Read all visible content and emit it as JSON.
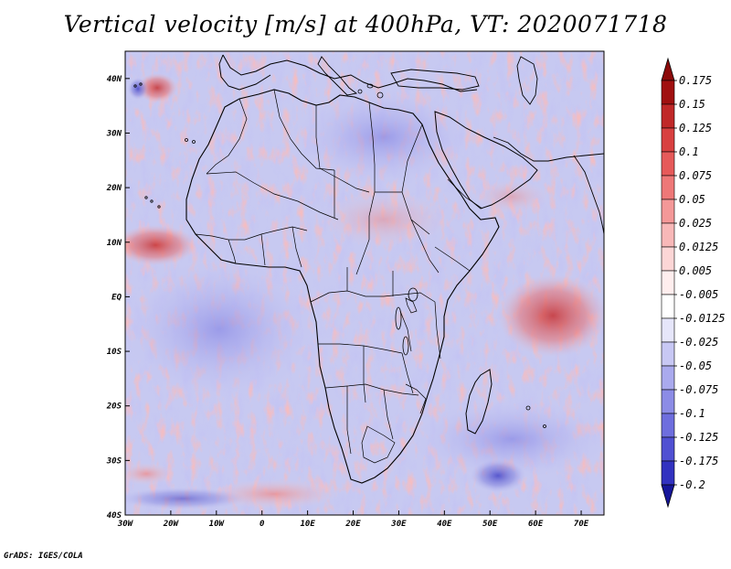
{
  "title": "Vertical velocity [m/s] at 400hPa, VT: 2020071718",
  "footer": "GrADS: IGES/COLA",
  "map": {
    "longitude_range": [
      -30,
      75
    ],
    "latitude_range": [
      -40,
      45
    ],
    "lon_ticks": [
      {
        "lon": -30,
        "label": "30W"
      },
      {
        "lon": -20,
        "label": "20W"
      },
      {
        "lon": -10,
        "label": "10W"
      },
      {
        "lon": 0,
        "label": "0"
      },
      {
        "lon": 10,
        "label": "10E"
      },
      {
        "lon": 20,
        "label": "20E"
      },
      {
        "lon": 30,
        "label": "30E"
      },
      {
        "lon": 40,
        "label": "40E"
      },
      {
        "lon": 50,
        "label": "50E"
      },
      {
        "lon": 60,
        "label": "60E"
      },
      {
        "lon": 70,
        "label": "70E"
      }
    ],
    "lat_ticks": [
      {
        "lat": 40,
        "label": "40N"
      },
      {
        "lat": 30,
        "label": "30N"
      },
      {
        "lat": 20,
        "label": "20N"
      },
      {
        "lat": 10,
        "label": "10N"
      },
      {
        "lat": 0,
        "label": "EQ"
      },
      {
        "lat": -10,
        "label": "10S"
      },
      {
        "lat": -20,
        "label": "20S"
      },
      {
        "lat": -30,
        "label": "30S"
      },
      {
        "lat": -40,
        "label": "40S"
      }
    ]
  },
  "colorbar": {
    "units": "m/s",
    "levels": [
      {
        "label": "0.175",
        "color": "#a01010"
      },
      {
        "label": "0.15",
        "color": "#c02828"
      },
      {
        "label": "0.125",
        "color": "#d84040"
      },
      {
        "label": "0.1",
        "color": "#e65a5a"
      },
      {
        "label": "0.075",
        "color": "#ee7878"
      },
      {
        "label": "0.05",
        "color": "#f49898"
      },
      {
        "label": "0.025",
        "color": "#f8b8b8"
      },
      {
        "label": "0.0125",
        "color": "#fcd6d6"
      },
      {
        "label": "0.005",
        "color": "#ffeeee"
      },
      {
        "label": "-0.005",
        "color": "#ffffff"
      },
      {
        "label": "-0.0125",
        "color": "#e6e6fa"
      },
      {
        "label": "-0.025",
        "color": "#c8c8f4"
      },
      {
        "label": "-0.05",
        "color": "#aaaaee"
      },
      {
        "label": "-0.075",
        "color": "#8c8ce6"
      },
      {
        "label": "-0.1",
        "color": "#6e6ede"
      },
      {
        "label": "-0.125",
        "color": "#5050d2"
      },
      {
        "label": "-0.175",
        "color": "#3232c0"
      },
      {
        "label": "-0.2",
        "color": "#1e1ea8"
      }
    ],
    "top_arrow_color": "#8c0a0a",
    "bottom_arrow_color": "#16169a"
  },
  "features": {
    "ascent_region_color": "#f29a9a",
    "descent_region_color": "#8f8fe6",
    "strong_ascent_color": "#c83030",
    "strong_descent_color": "#3c3cc4",
    "coastline_color": "#000000"
  }
}
